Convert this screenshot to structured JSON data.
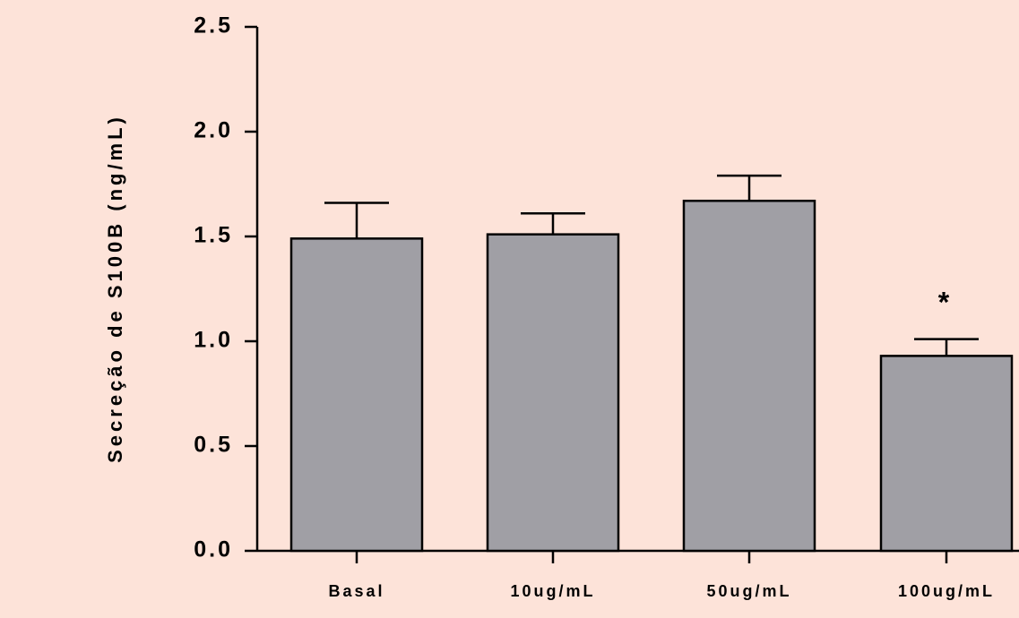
{
  "chart_data": {
    "type": "bar",
    "title": "",
    "xlabel": "",
    "ylabel": "Secreção de S100B (ng/mL)",
    "ylim": [
      0,
      2.5
    ],
    "yticks": [
      "0.0",
      "0.5",
      "1.0",
      "1.5",
      "2.0",
      "2.5"
    ],
    "categories": [
      "Basal",
      "10ug/mL",
      "50ug/mL",
      "100ug/mL"
    ],
    "values": [
      1.49,
      1.51,
      1.67,
      0.93
    ],
    "error_upper": [
      0.17,
      0.1,
      0.12,
      0.08
    ],
    "annotations": [
      "",
      "",
      "",
      "*"
    ],
    "grid": false,
    "colors": {
      "bar_fill": "#a09fa5",
      "bar_stroke": "#000000",
      "background": "#fde3d9"
    }
  }
}
